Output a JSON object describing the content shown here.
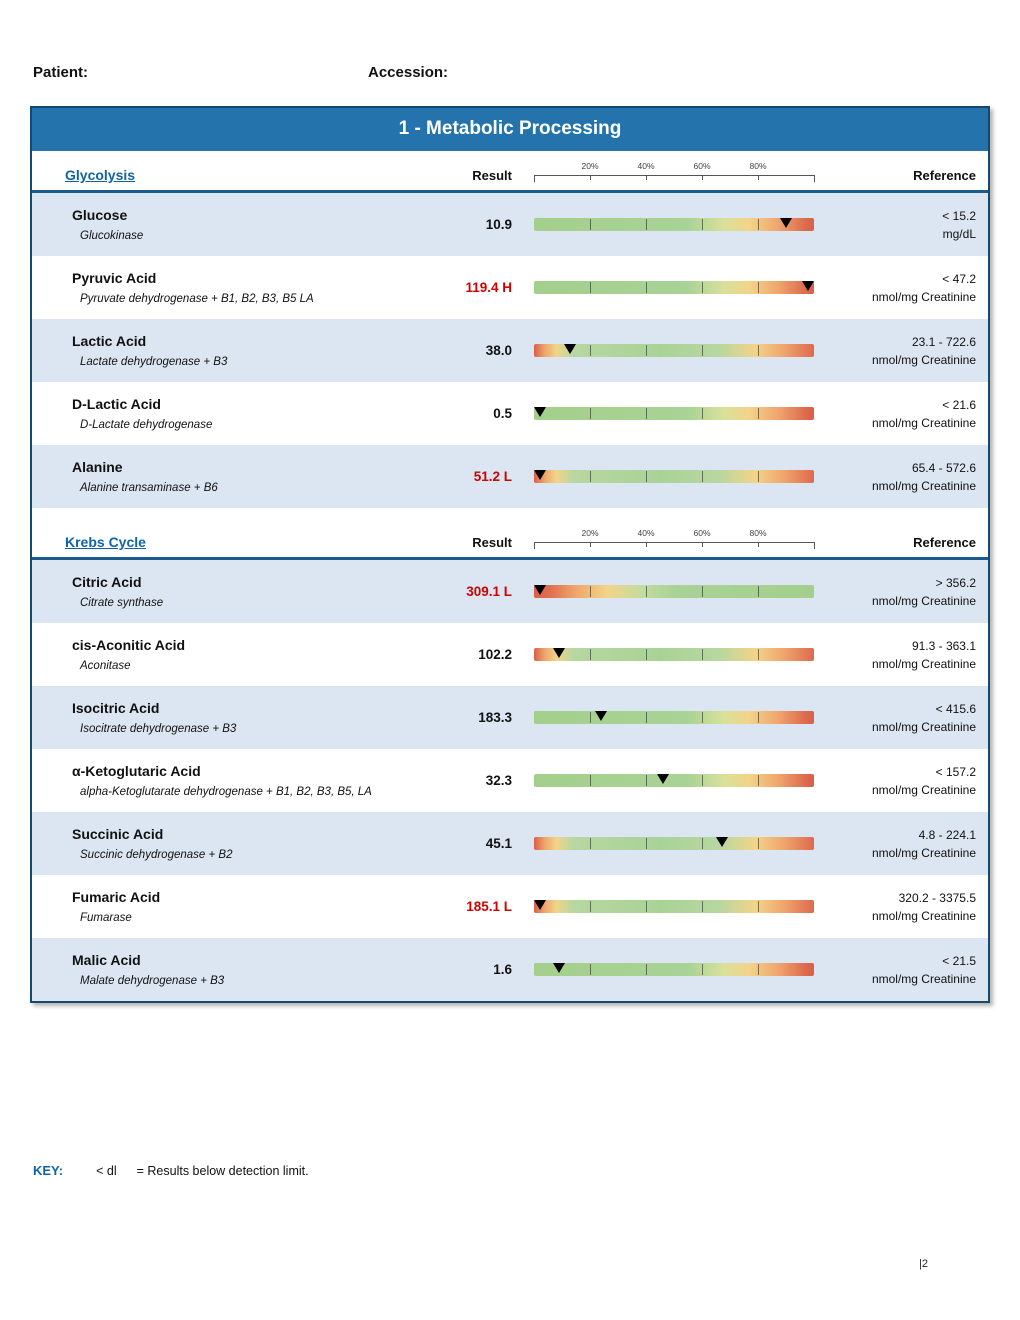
{
  "page": {
    "patient_label": "Patient:",
    "accession_label": "Accession:",
    "page_number": "|2"
  },
  "colors": {
    "banner": "#2573ad",
    "section-title": "#1064a6",
    "stripe": "#dce6f2",
    "abnormal": "#d10000",
    "frame": "#17486e"
  },
  "report": {
    "title": "1 - Metabolic Processing",
    "columns": {
      "result": "Result",
      "reference": "Reference"
    },
    "scale_labels": [
      "20%",
      "40%",
      "60%",
      "80%"
    ],
    "sections": [
      {
        "name": "Glycolysis",
        "rows": [
          {
            "analyte": "Glucose",
            "enzyme": "Glucokinase",
            "result": "10.9",
            "flag": "",
            "abnormal": false,
            "bar_type": "high",
            "marker_pct": 90,
            "ref_value": "< 15.2",
            "ref_units": "mg/dL"
          },
          {
            "analyte": "Pyruvic Acid",
            "enzyme": "Pyruvate dehydrogenase + B1, B2, B3, B5 LA",
            "result": "119.4",
            "flag": "H",
            "abnormal": true,
            "bar_type": "high",
            "marker_pct": 98,
            "ref_value": "< 47.2",
            "ref_units": "nmol/mg Creatinine"
          },
          {
            "analyte": "Lactic Acid",
            "enzyme": "Lactate dehydrogenase + B3",
            "result": "38.0",
            "flag": "",
            "abnormal": false,
            "bar_type": "range",
            "marker_pct": 13,
            "ref_value": "23.1 - 722.6",
            "ref_units": "nmol/mg Creatinine"
          },
          {
            "analyte": "D-Lactic Acid",
            "enzyme": "D-Lactate dehydrogenase",
            "result": "0.5",
            "flag": "",
            "abnormal": false,
            "bar_type": "high",
            "marker_pct": 2,
            "ref_value": "< 21.6",
            "ref_units": "nmol/mg Creatinine"
          },
          {
            "analyte": "Alanine",
            "enzyme": "Alanine transaminase + B6",
            "result": "51.2",
            "flag": "L",
            "abnormal": true,
            "bar_type": "range",
            "marker_pct": 2,
            "ref_value": "65.4 - 572.6",
            "ref_units": "nmol/mg Creatinine"
          }
        ]
      },
      {
        "name": "Krebs Cycle",
        "rows": [
          {
            "analyte": "Citric Acid",
            "enzyme": "Citrate synthase",
            "result": "309.1",
            "flag": "L",
            "abnormal": true,
            "bar_type": "low",
            "marker_pct": 2,
            "ref_value": "> 356.2",
            "ref_units": "nmol/mg Creatinine"
          },
          {
            "analyte": "cis-Aconitic Acid",
            "enzyme": "Aconitase",
            "result": "102.2",
            "flag": "",
            "abnormal": false,
            "bar_type": "range",
            "marker_pct": 9,
            "ref_value": "91.3 - 363.1",
            "ref_units": "nmol/mg Creatinine"
          },
          {
            "analyte": "Isocitric Acid",
            "enzyme": "Isocitrate dehydrogenase + B3",
            "result": "183.3",
            "flag": "",
            "abnormal": false,
            "bar_type": "high",
            "marker_pct": 24,
            "ref_value": "< 415.6",
            "ref_units": "nmol/mg Creatinine"
          },
          {
            "analyte": "α-Ketoglutaric Acid",
            "enzyme": "alpha-Ketoglutarate dehydrogenase + B1, B2, B3, B5, LA",
            "result": "32.3",
            "flag": "",
            "abnormal": false,
            "bar_type": "high",
            "marker_pct": 46,
            "ref_value": "< 157.2",
            "ref_units": "nmol/mg Creatinine"
          },
          {
            "analyte": "Succinic Acid",
            "enzyme": "Succinic dehydrogenase + B2",
            "result": "45.1",
            "flag": "",
            "abnormal": false,
            "bar_type": "range",
            "marker_pct": 67,
            "ref_value": "4.8 - 224.1",
            "ref_units": "nmol/mg Creatinine"
          },
          {
            "analyte": "Fumaric Acid",
            "enzyme": "Fumarase",
            "result": "185.1",
            "flag": "L",
            "abnormal": true,
            "bar_type": "range",
            "marker_pct": 2,
            "ref_value": "320.2 - 3375.5",
            "ref_units": "nmol/mg Creatinine"
          },
          {
            "analyte": "Malic Acid",
            "enzyme": "Malate dehydrogenase + B3",
            "result": "1.6",
            "flag": "",
            "abnormal": false,
            "bar_type": "high",
            "marker_pct": 9,
            "ref_value": "< 21.5",
            "ref_units": "nmol/mg Creatinine"
          }
        ]
      }
    ]
  },
  "key": {
    "label": "KEY:",
    "symbol": "< dl",
    "text": "= Results below detection limit."
  }
}
